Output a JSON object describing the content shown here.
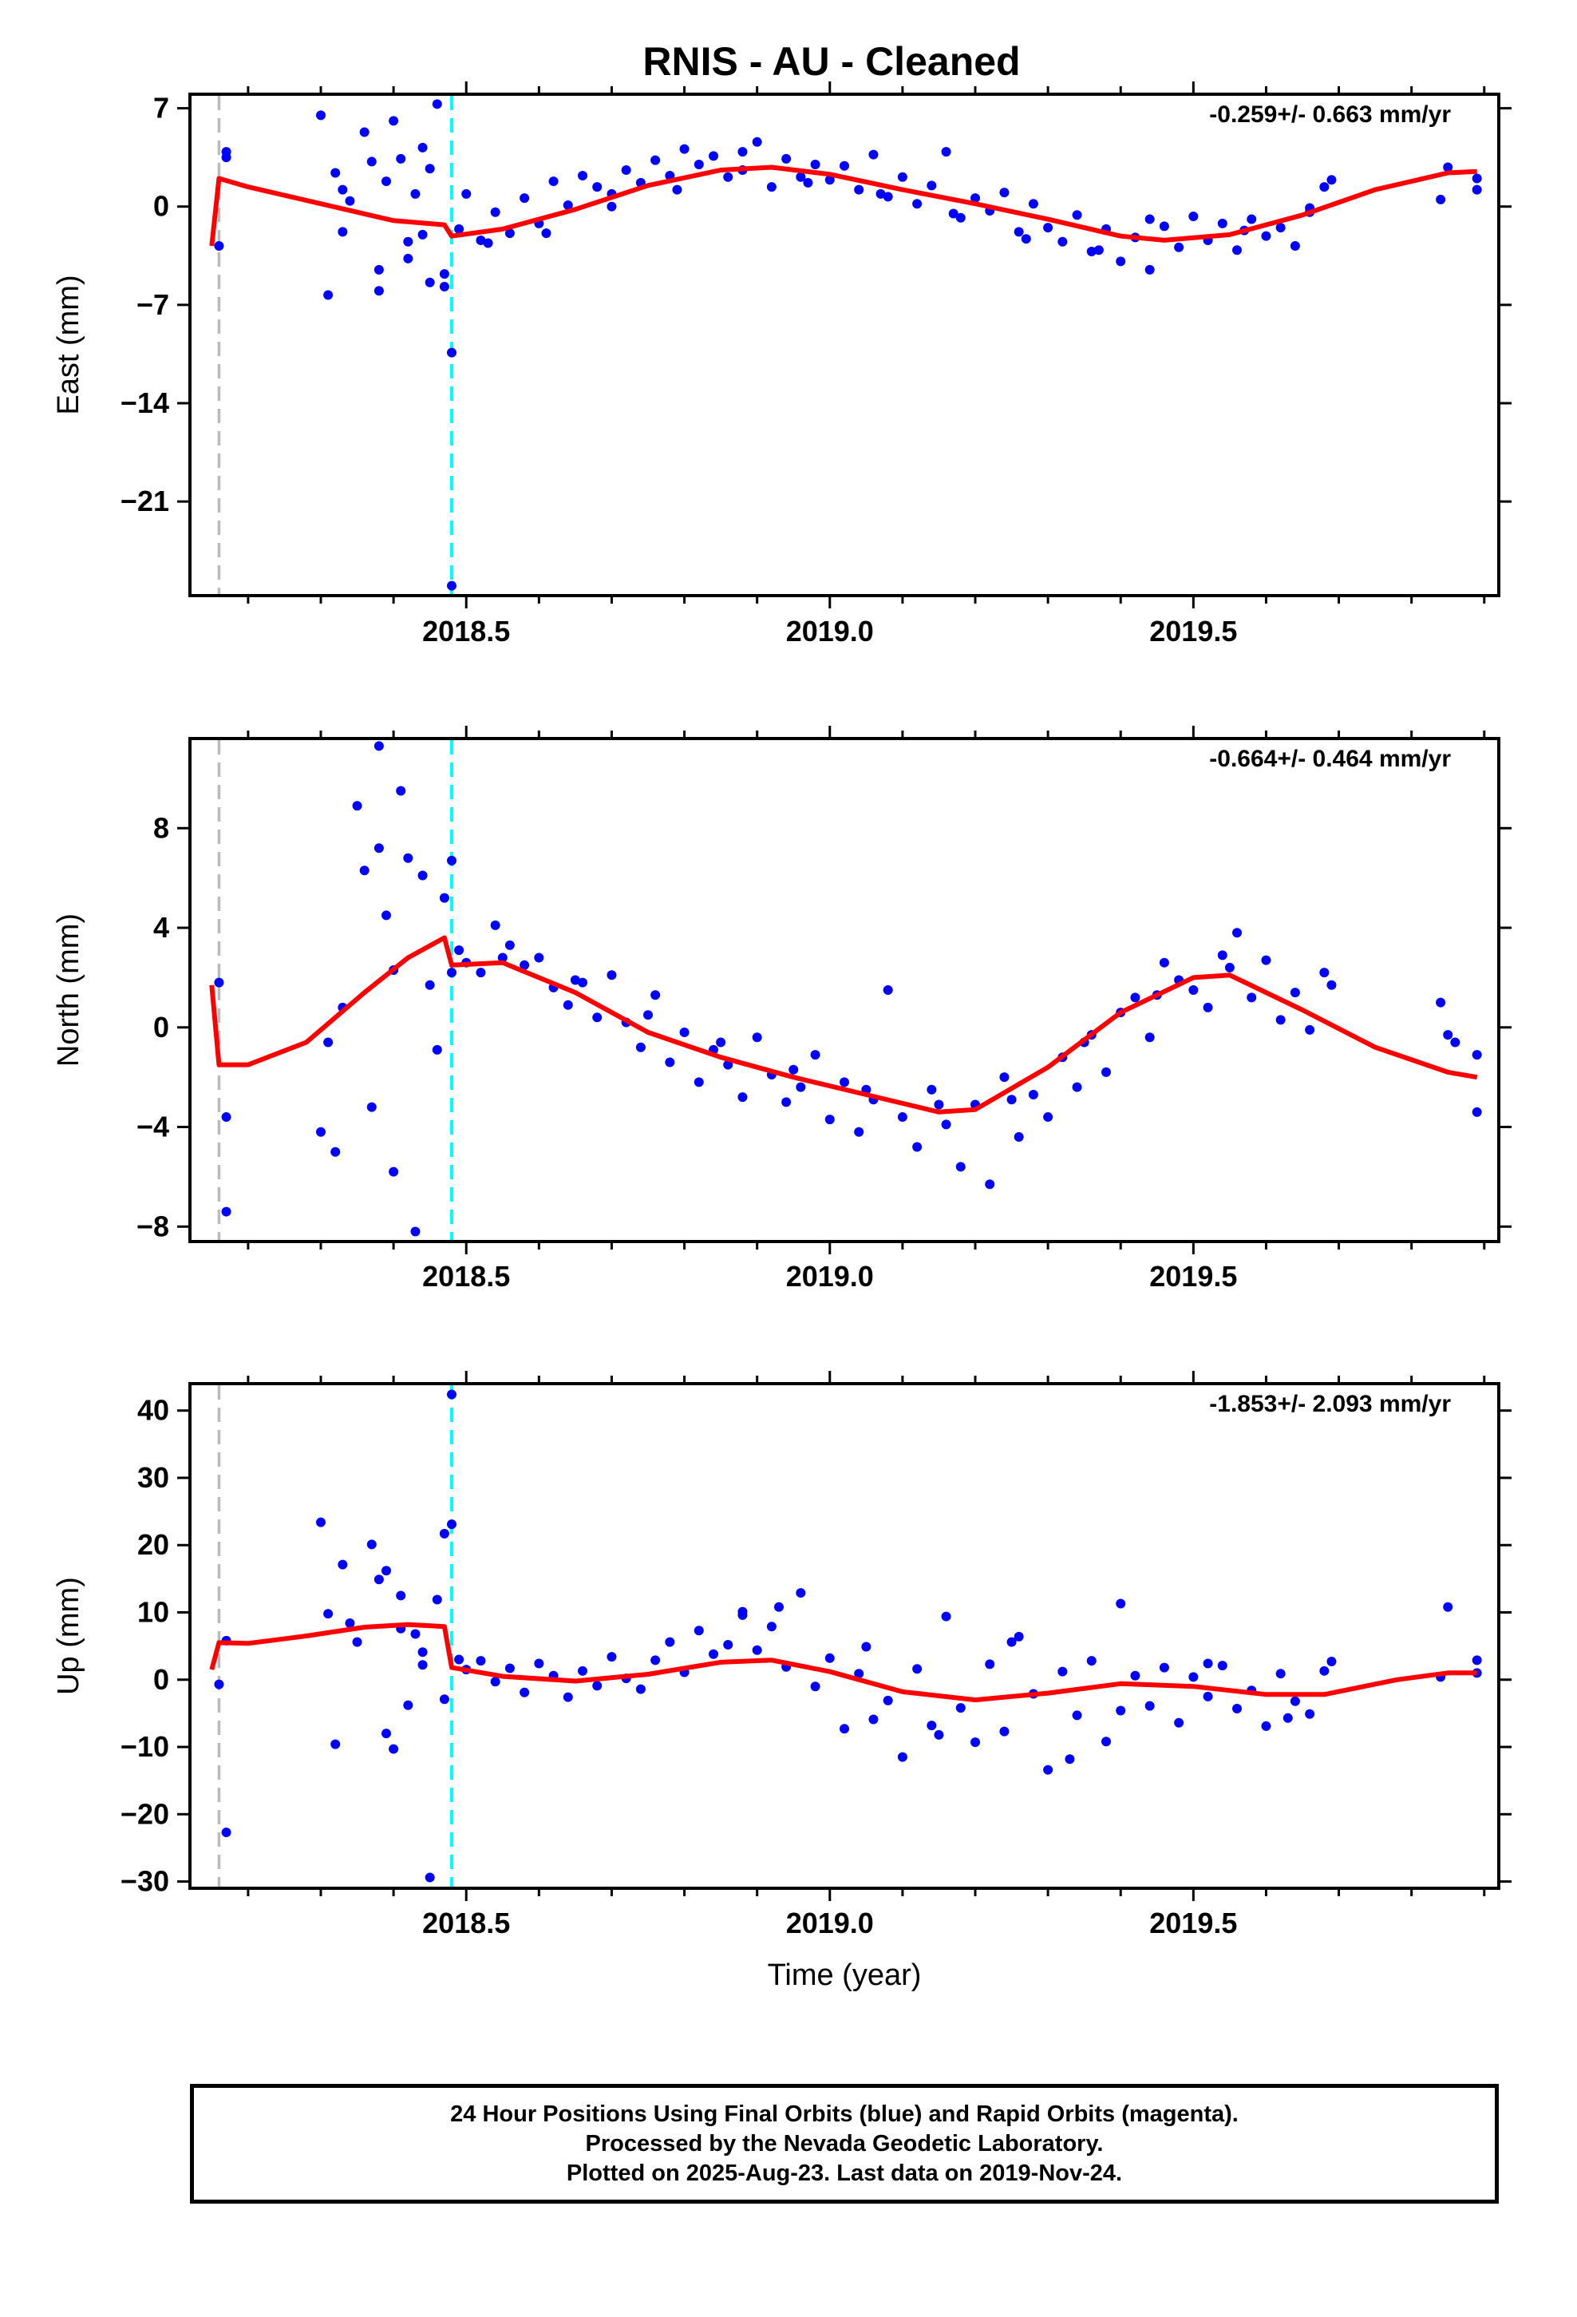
{
  "title": "RNIS  - AU - Cleaned",
  "xlabel": "Time (year)",
  "caption": [
    "24 Hour Positions Using Final Orbits (blue) and Rapid Orbits (magenta).",
    "Processed by the Nevada Geodetic Laboratory.",
    "Plotted on 2025-Aug-23. Last data on 2019-Nov-24."
  ],
  "colors": {
    "points": "#0000ff",
    "model": "#ff0000",
    "dashed_gray": "#bbbbbb",
    "dashed_cyan": "#00ffff",
    "frame": "#000000"
  },
  "chart_data": [
    {
      "type": "scatter",
      "component": "East",
      "ylabel": "East (mm)",
      "rate_label": "-0.259+/- 0.663 mm/yr",
      "xlim": [
        2018.12,
        2019.92
      ],
      "ylim": [
        -27.7,
        8.0
      ],
      "xticks": [
        2018.5,
        2019.0,
        2019.5
      ],
      "xticklabels": [
        "2018.5",
        "2019.0",
        "2019.5"
      ],
      "yticks": [
        7,
        0,
        -7,
        -14,
        -21
      ],
      "yticklabels": [
        "7",
        "0",
        "−7",
        "−14",
        "−21"
      ],
      "vlines": [
        {
          "x": 2018.16,
          "color": "gray"
        },
        {
          "x": 2018.48,
          "color": "cyan"
        }
      ],
      "model": {
        "x": [
          2018.15,
          2018.16,
          2018.2,
          2018.3,
          2018.4,
          2018.47,
          2018.48,
          2018.55,
          2018.65,
          2018.75,
          2018.85,
          2018.92,
          2019.0,
          2019.1,
          2019.2,
          2019.3,
          2019.4,
          2019.46,
          2019.55,
          2019.65,
          2019.75,
          2019.85,
          2019.89
        ],
        "y": [
          -2.8,
          2.0,
          1.4,
          0.2,
          -1.0,
          -1.3,
          -2.1,
          -1.6,
          -0.2,
          1.5,
          2.6,
          2.8,
          2.3,
          1.2,
          0.2,
          -0.9,
          -2.1,
          -2.4,
          -2.0,
          -0.6,
          1.2,
          2.4,
          2.5
        ]
      },
      "points": {
        "x": [
          2018.16,
          2018.17,
          2018.17,
          2018.3,
          2018.31,
          2018.32,
          2018.33,
          2018.33,
          2018.34,
          2018.36,
          2018.37,
          2018.38,
          2018.39,
          2018.4,
          2018.41,
          2018.42,
          2018.43,
          2018.44,
          2018.45,
          2018.46,
          2018.47,
          2018.47,
          2018.48,
          2018.48,
          2018.44,
          2018.45,
          2018.38,
          2018.42,
          2018.49,
          2018.5,
          2018.52,
          2018.54,
          2018.56,
          2018.58,
          2018.6,
          2018.62,
          2018.64,
          2018.66,
          2018.68,
          2018.7,
          2018.72,
          2018.74,
          2018.76,
          2018.78,
          2018.8,
          2018.82,
          2018.84,
          2018.86,
          2018.88,
          2018.9,
          2018.92,
          2018.94,
          2018.96,
          2018.98,
          2019.0,
          2019.02,
          2019.04,
          2019.06,
          2019.08,
          2019.1,
          2019.12,
          2019.14,
          2019.16,
          2019.18,
          2019.2,
          2019.22,
          2019.24,
          2019.26,
          2019.28,
          2019.3,
          2019.32,
          2019.34,
          2019.36,
          2019.38,
          2019.4,
          2019.42,
          2019.44,
          2019.46,
          2019.48,
          2019.5,
          2019.52,
          2019.54,
          2019.56,
          2019.58,
          2019.6,
          2019.62,
          2019.64,
          2019.66,
          2019.68,
          2019.69,
          2019.84,
          2019.85,
          2019.89,
          2019.89,
          2018.53,
          2018.61,
          2018.7,
          2018.79,
          2018.88,
          2018.97,
          2019.07,
          2019.17,
          2019.27,
          2019.37,
          2019.44,
          2019.57,
          2019.66
        ],
        "y": [
          -2.8,
          3.9,
          3.5,
          6.5,
          -6.3,
          2.4,
          1.2,
          -1.8,
          0.4,
          5.3,
          3.2,
          -4.5,
          1.8,
          6.1,
          3.4,
          -2.5,
          0.9,
          4.2,
          2.7,
          7.3,
          -4.8,
          -5.7,
          -10.4,
          -27.0,
          -2.0,
          -5.4,
          -6.0,
          -3.7,
          -1.6,
          0.9,
          -2.4,
          -0.4,
          -1.9,
          0.6,
          -1.2,
          1.8,
          0.1,
          2.2,
          1.4,
          0.9,
          2.6,
          1.7,
          3.3,
          2.2,
          4.1,
          3.0,
          3.6,
          2.1,
          3.9,
          4.6,
          1.4,
          3.4,
          2.1,
          3.0,
          1.9,
          2.9,
          1.2,
          3.7,
          0.7,
          2.1,
          0.2,
          1.5,
          3.9,
          -0.8,
          0.6,
          -0.3,
          1.0,
          -1.8,
          0.2,
          -1.5,
          -2.5,
          -0.6,
          -3.2,
          -1.6,
          -3.9,
          -2.2,
          -4.5,
          -1.4,
          -2.9,
          -0.7,
          -2.4,
          -1.2,
          -3.1,
          -0.9,
          -2.1,
          -1.5,
          -2.8,
          -0.1,
          1.4,
          1.9,
          0.5,
          2.8,
          1.2,
          2.0,
          -2.6,
          -1.9,
          0.0,
          1.2,
          2.6,
          1.7,
          0.9,
          -0.5,
          -2.3,
          -3.1,
          -0.9,
          -1.7,
          -0.4
        ]
      }
    },
    {
      "type": "scatter",
      "component": "North",
      "ylabel": "North (mm)",
      "rate_label": "-0.664+/- 0.464 mm/yr",
      "xlim": [
        2018.12,
        2019.92
      ],
      "ylim": [
        -8.6,
        11.6
      ],
      "xticks": [
        2018.5,
        2019.0,
        2019.5
      ],
      "xticklabels": [
        "2018.5",
        "2019.0",
        "2019.5"
      ],
      "yticks": [
        8,
        4,
        0,
        -4,
        -8
      ],
      "yticklabels": [
        "8",
        "4",
        "0",
        "−4",
        "−8"
      ],
      "vlines": [
        {
          "x": 2018.16,
          "color": "gray"
        },
        {
          "x": 2018.48,
          "color": "cyan"
        }
      ],
      "model": {
        "x": [
          2018.15,
          2018.16,
          2018.2,
          2018.28,
          2018.36,
          2018.42,
          2018.47,
          2018.48,
          2018.55,
          2018.65,
          2018.75,
          2018.85,
          2018.95,
          2019.05,
          2019.15,
          2019.2,
          2019.3,
          2019.4,
          2019.5,
          2019.55,
          2019.65,
          2019.75,
          2019.85,
          2019.89
        ],
        "y": [
          1.7,
          -1.5,
          -1.5,
          -0.6,
          1.4,
          2.8,
          3.6,
          2.5,
          2.6,
          1.4,
          -0.2,
          -1.2,
          -2.0,
          -2.7,
          -3.4,
          -3.3,
          -1.6,
          0.6,
          2.0,
          2.1,
          0.7,
          -0.8,
          -1.8,
          -2.0
        ]
      },
      "points": {
        "x": [
          2018.16,
          2018.17,
          2018.17,
          2018.3,
          2018.31,
          2018.32,
          2018.33,
          2018.35,
          2018.36,
          2018.37,
          2018.38,
          2018.38,
          2018.39,
          2018.4,
          2018.4,
          2018.41,
          2018.42,
          2018.43,
          2018.44,
          2018.45,
          2018.46,
          2018.47,
          2018.48,
          2018.48,
          2018.49,
          2018.5,
          2018.52,
          2018.54,
          2018.56,
          2018.58,
          2018.6,
          2018.62,
          2018.64,
          2018.66,
          2018.68,
          2018.7,
          2018.72,
          2018.74,
          2018.76,
          2018.78,
          2018.8,
          2018.82,
          2018.84,
          2018.86,
          2018.88,
          2018.9,
          2018.92,
          2018.94,
          2018.96,
          2018.98,
          2019.0,
          2019.02,
          2019.04,
          2019.06,
          2019.08,
          2019.1,
          2019.12,
          2019.14,
          2019.16,
          2019.18,
          2019.2,
          2019.22,
          2019.24,
          2019.26,
          2019.28,
          2019.3,
          2019.32,
          2019.34,
          2019.36,
          2019.38,
          2019.4,
          2019.42,
          2019.44,
          2019.46,
          2019.48,
          2019.5,
          2019.52,
          2019.54,
          2019.56,
          2019.58,
          2019.6,
          2019.62,
          2019.64,
          2019.66,
          2019.68,
          2019.69,
          2019.84,
          2019.85,
          2019.86,
          2019.89,
          2019.89,
          2018.55,
          2018.65,
          2018.75,
          2018.85,
          2018.95,
          2019.05,
          2019.15,
          2019.25,
          2019.35,
          2019.45,
          2019.55
        ],
        "y": [
          1.8,
          -7.4,
          -3.6,
          -4.2,
          -0.6,
          -5.0,
          0.8,
          8.9,
          6.3,
          -3.2,
          11.3,
          7.2,
          4.5,
          -5.8,
          2.3,
          9.5,
          6.8,
          -8.2,
          6.1,
          1.7,
          -0.9,
          5.2,
          6.7,
          2.2,
          3.1,
          2.6,
          2.2,
          4.1,
          3.3,
          2.5,
          2.8,
          1.6,
          0.9,
          1.8,
          0.4,
          2.1,
          0.2,
          -0.8,
          1.3,
          -1.4,
          -0.2,
          -2.2,
          -0.9,
          -1.5,
          -2.8,
          -0.4,
          -1.9,
          -3.0,
          -2.4,
          -1.1,
          -3.7,
          -2.2,
          -4.2,
          -2.9,
          1.5,
          -3.6,
          -4.8,
          -2.5,
          -3.9,
          -5.6,
          -3.1,
          -6.3,
          -2.0,
          -4.4,
          -2.7,
          -3.6,
          -1.2,
          -2.4,
          -0.3,
          -1.8,
          0.6,
          1.2,
          -0.4,
          2.6,
          1.9,
          1.5,
          0.8,
          2.9,
          3.8,
          1.2,
          2.7,
          0.3,
          1.4,
          -0.1,
          2.2,
          1.7,
          1.0,
          -0.3,
          -0.6,
          -3.4,
          -1.1,
          2.8,
          1.9,
          0.5,
          -0.6,
          -1.7,
          -2.5,
          -3.1,
          -2.9,
          -0.6,
          1.3,
          2.4
        ]
      }
    },
    {
      "type": "scatter",
      "component": "Up",
      "ylabel": "Up (mm)",
      "rate_label": "-1.853+/- 2.093 mm/yr",
      "xlim": [
        2018.12,
        2019.92
      ],
      "ylim": [
        -31,
        44
      ],
      "xticks": [
        2018.5,
        2019.0,
        2019.5
      ],
      "xticklabels": [
        "2018.5",
        "2019.0",
        "2019.5"
      ],
      "yticks": [
        40,
        30,
        20,
        10,
        0,
        -10,
        -20,
        -30
      ],
      "yticklabels": [
        "40",
        "30",
        "20",
        "10",
        "0",
        "−10",
        "−20",
        "−30"
      ],
      "vlines": [
        {
          "x": 2018.16,
          "color": "gray"
        },
        {
          "x": 2018.48,
          "color": "cyan"
        }
      ],
      "model": {
        "x": [
          2018.15,
          2018.16,
          2018.2,
          2018.28,
          2018.36,
          2018.42,
          2018.47,
          2018.48,
          2018.55,
          2018.65,
          2018.75,
          2018.85,
          2018.92,
          2019.0,
          2019.1,
          2019.2,
          2019.3,
          2019.4,
          2019.5,
          2019.6,
          2019.68,
          2019.78,
          2019.85,
          2019.89
        ],
        "y": [
          1.5,
          5.5,
          5.4,
          6.5,
          7.8,
          8.2,
          7.9,
          1.8,
          0.5,
          -0.2,
          0.8,
          2.6,
          2.9,
          1.2,
          -1.8,
          -3.0,
          -2.0,
          -0.6,
          -1.0,
          -2.2,
          -2.2,
          0.0,
          1.0,
          1.0
        ]
      },
      "points": {
        "x": [
          2018.16,
          2018.17,
          2018.17,
          2018.3,
          2018.31,
          2018.32,
          2018.33,
          2018.34,
          2018.35,
          2018.37,
          2018.38,
          2018.39,
          2018.39,
          2018.4,
          2018.41,
          2018.42,
          2018.43,
          2018.44,
          2018.45,
          2018.46,
          2018.47,
          2018.47,
          2018.48,
          2018.48,
          2018.44,
          2018.41,
          2018.49,
          2018.5,
          2018.52,
          2018.54,
          2018.56,
          2018.58,
          2018.6,
          2018.62,
          2018.64,
          2018.66,
          2018.68,
          2018.7,
          2018.72,
          2018.74,
          2018.76,
          2018.78,
          2018.8,
          2018.82,
          2018.84,
          2018.86,
          2018.88,
          2018.9,
          2018.92,
          2018.94,
          2018.96,
          2018.98,
          2019.0,
          2019.02,
          2019.04,
          2019.06,
          2019.08,
          2019.1,
          2019.12,
          2019.14,
          2019.16,
          2019.18,
          2019.2,
          2019.22,
          2019.24,
          2019.26,
          2019.28,
          2019.3,
          2019.32,
          2019.34,
          2019.36,
          2019.38,
          2019.4,
          2019.42,
          2019.44,
          2019.46,
          2019.48,
          2019.5,
          2019.52,
          2019.54,
          2019.56,
          2019.58,
          2019.6,
          2019.62,
          2019.64,
          2019.66,
          2019.68,
          2019.69,
          2019.84,
          2019.85,
          2019.89,
          2019.89,
          2018.88,
          2018.93,
          2019.05,
          2019.15,
          2019.25,
          2019.33,
          2019.4,
          2019.52,
          2019.63
        ],
        "y": [
          -0.7,
          5.8,
          -22.7,
          23.4,
          9.8,
          -9.6,
          17.1,
          8.4,
          5.6,
          20.1,
          14.9,
          16.2,
          -8.0,
          -10.3,
          12.5,
          -3.8,
          6.8,
          2.2,
          -29.4,
          11.9,
          21.7,
          -2.9,
          42.4,
          23.1,
          4.1,
          7.6,
          3.0,
          1.5,
          2.8,
          -0.3,
          1.7,
          -1.9,
          2.4,
          0.6,
          -2.6,
          1.3,
          -0.9,
          3.4,
          0.2,
          -1.4,
          2.9,
          5.6,
          1.1,
          7.3,
          3.8,
          5.2,
          9.6,
          4.4,
          7.9,
          1.9,
          12.9,
          -1.0,
          3.2,
          -7.3,
          0.9,
          -5.9,
          -3.1,
          -11.5,
          1.6,
          -6.8,
          9.4,
          -4.2,
          -9.3,
          2.3,
          -7.7,
          6.4,
          -2.1,
          -13.4,
          1.2,
          -5.3,
          2.8,
          -9.2,
          11.3,
          0.6,
          -3.9,
          1.8,
          -6.4,
          0.4,
          -2.5,
          2.1,
          -4.3,
          -1.6,
          -6.9,
          0.9,
          -3.2,
          -5.1,
          1.3,
          2.7,
          0.4,
          10.8,
          2.9,
          1.0,
          10.1,
          10.8,
          4.9,
          -8.2,
          5.6,
          -11.8,
          -4.6,
          2.4,
          -5.7
        ]
      }
    }
  ]
}
